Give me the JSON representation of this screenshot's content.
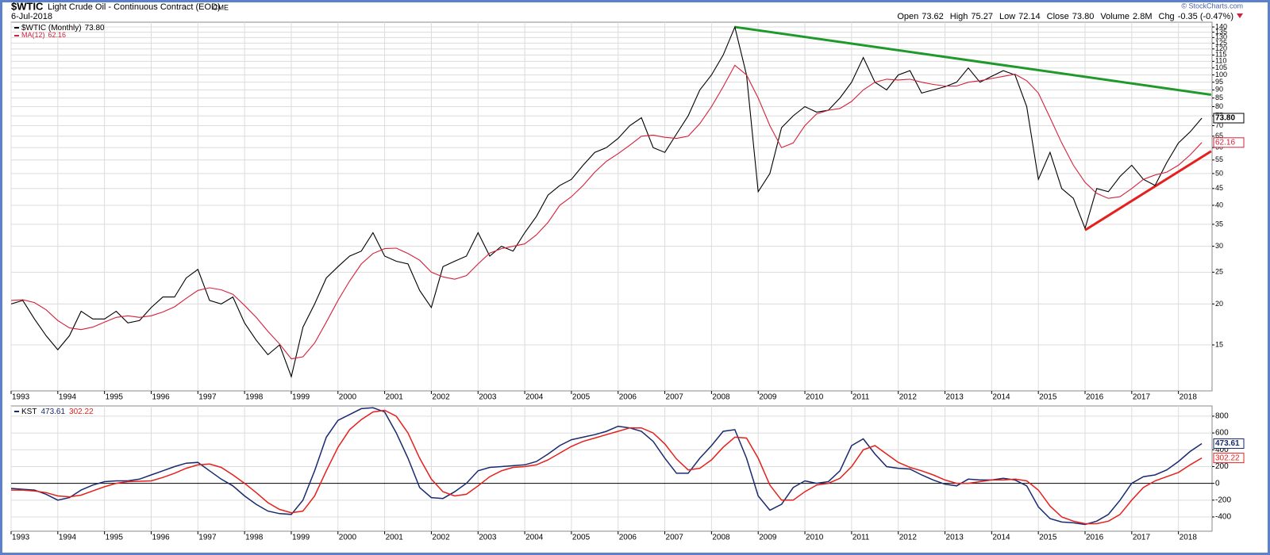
{
  "header": {
    "symbol": "$WTIC",
    "name": "Light Crude Oil - Continuous Contract (EOD)",
    "exchange": "CME",
    "date": "6-Jul-2018",
    "credit": "© StockCharts.com",
    "quote": [
      {
        "label": "Open",
        "value": "73.62"
      },
      {
        "label": "High",
        "value": "75.27"
      },
      {
        "label": "Low",
        "value": "72.14"
      },
      {
        "label": "Close",
        "value": "73.80"
      },
      {
        "label": "Volume",
        "value": "2.8M"
      },
      {
        "label": "Chg",
        "value": "-0.35 (-0.47%)"
      }
    ]
  },
  "chart_data": [
    {
      "type": "line",
      "log_scale": true,
      "grid": true,
      "x": [
        1993,
        1993.25,
        1993.5,
        1993.75,
        1994,
        1994.25,
        1994.5,
        1994.75,
        1995,
        1995.25,
        1995.5,
        1995.75,
        1996,
        1996.25,
        1996.5,
        1996.75,
        1997,
        1997.25,
        1997.5,
        1997.75,
        1998,
        1998.25,
        1998.5,
        1998.75,
        1999,
        1999.25,
        1999.5,
        1999.75,
        2000,
        2000.25,
        2000.5,
        2000.75,
        2001,
        2001.25,
        2001.5,
        2001.75,
        2002,
        2002.25,
        2002.5,
        2002.75,
        2003,
        2003.25,
        2003.5,
        2003.75,
        2004,
        2004.25,
        2004.5,
        2004.75,
        2005,
        2005.25,
        2005.5,
        2005.75,
        2006,
        2006.25,
        2006.5,
        2006.75,
        2007,
        2007.25,
        2007.5,
        2007.75,
        2008,
        2008.25,
        2008.5,
        2008.75,
        2009,
        2009.25,
        2009.5,
        2009.75,
        2010,
        2010.25,
        2010.5,
        2010.75,
        2011,
        2011.25,
        2011.5,
        2011.75,
        2012,
        2012.25,
        2012.5,
        2012.75,
        2013,
        2013.25,
        2013.5,
        2013.75,
        2014,
        2014.25,
        2014.5,
        2014.75,
        2015,
        2015.25,
        2015.5,
        2015.75,
        2016,
        2016.25,
        2016.5,
        2016.75,
        2017,
        2017.25,
        2017.5,
        2017.75,
        2018,
        2018.25,
        2018.5
      ],
      "series": [
        {
          "name": "$WTIC (Monthly)",
          "color": "#000000",
          "last_label": "73.80",
          "values": [
            20,
            20.5,
            18,
            16,
            14.5,
            16,
            19,
            18,
            18,
            19,
            17.5,
            17.8,
            19.5,
            21,
            21,
            24,
            25.5,
            20.5,
            20,
            21,
            17.5,
            15.5,
            14,
            15,
            12,
            17,
            20,
            24,
            26,
            28,
            29,
            33,
            28,
            27,
            26.5,
            22,
            19.5,
            26,
            27,
            28,
            33,
            28,
            30,
            29,
            33,
            37,
            43,
            46,
            48,
            53,
            58,
            60,
            64,
            70,
            74,
            60,
            58,
            66,
            75,
            90,
            100,
            115,
            140,
            100,
            44,
            50,
            69,
            75,
            80,
            77,
            78,
            85,
            95,
            113,
            95,
            90,
            100,
            103,
            88,
            90,
            92,
            95,
            105,
            95,
            99,
            103,
            100,
            80,
            48,
            58,
            45,
            42,
            34,
            45,
            44,
            49,
            53,
            48,
            46,
            54,
            62,
            67,
            73.8
          ]
        },
        {
          "name": "MA(12)",
          "color": "#d4203a",
          "last_label": "62.16",
          "values": [
            20.5,
            20.6,
            20.2,
            19.2,
            17.8,
            16.9,
            16.7,
            17.0,
            17.6,
            18.2,
            18.4,
            18.2,
            18.4,
            18.9,
            19.6,
            20.8,
            22.0,
            22.4,
            22.1,
            21.4,
            19.8,
            18.2,
            16.5,
            15.1,
            13.6,
            13.8,
            15.2,
            17.6,
            20.5,
            23.5,
            26.5,
            28.5,
            29.5,
            29.6,
            28.5,
            27.2,
            25.0,
            24.2,
            23.8,
            24.4,
            26.5,
            28.6,
            29.5,
            30.0,
            30.5,
            32.5,
            35.5,
            40.0,
            42.5,
            46.0,
            50.5,
            54.5,
            57.5,
            61.0,
            65.0,
            65.5,
            64.5,
            64.0,
            65.0,
            71.0,
            80.0,
            92.0,
            107.0,
            100.0,
            85.0,
            70.0,
            60.0,
            62.0,
            70.0,
            76.0,
            78.0,
            79.0,
            83.0,
            90.0,
            95.0,
            97.0,
            96.5,
            97.0,
            95.0,
            93.5,
            92.5,
            92.5,
            95.0,
            96.0,
            97.5,
            99.0,
            100.5,
            96.0,
            88.0,
            74.0,
            62.0,
            53.0,
            47.0,
            43.5,
            42.0,
            42.5,
            45.0,
            48.0,
            49.5,
            50.5,
            53.0,
            57.0,
            62.16
          ]
        }
      ],
      "trendlines": [
        {
          "color": "#1f9a2a",
          "x": [
            2008.5,
            2018.7
          ],
          "y": [
            140,
            87
          ]
        },
        {
          "color": "#e5201c",
          "x": [
            2016.0,
            2018.7
          ],
          "y": [
            33.6,
            58.5
          ]
        }
      ],
      "xlim": [
        1993,
        2018.72
      ],
      "xticks": [
        1993,
        1994,
        1995,
        1996,
        1997,
        1998,
        1999,
        2000,
        2001,
        2002,
        2003,
        2004,
        2005,
        2006,
        2007,
        2008,
        2009,
        2010,
        2011,
        2012,
        2013,
        2014,
        2015,
        2016,
        2017,
        2018
      ],
      "ylim": [
        10.86,
        144.8
      ],
      "yticks": [
        15,
        20,
        25,
        30,
        35,
        40,
        45,
        50,
        55,
        60,
        65,
        70,
        75,
        80,
        85,
        90,
        95,
        100,
        105,
        110,
        115,
        120,
        125,
        130,
        135,
        140
      ]
    },
    {
      "type": "line",
      "log_scale": false,
      "grid": true,
      "x": [
        1993,
        1993.25,
        1993.5,
        1993.75,
        1994,
        1994.25,
        1994.5,
        1994.75,
        1995,
        1995.25,
        1995.5,
        1995.75,
        1996,
        1996.25,
        1996.5,
        1996.75,
        1997,
        1997.25,
        1997.5,
        1997.75,
        1998,
        1998.25,
        1998.5,
        1998.75,
        1999,
        1999.25,
        1999.5,
        1999.75,
        2000,
        2000.25,
        2000.5,
        2000.75,
        2001,
        2001.25,
        2001.5,
        2001.75,
        2002,
        2002.25,
        2002.5,
        2002.75,
        2003,
        2003.25,
        2003.5,
        2003.75,
        2004,
        2004.25,
        2004.5,
        2004.75,
        2005,
        2005.25,
        2005.5,
        2005.75,
        2006,
        2006.25,
        2006.5,
        2006.75,
        2007,
        2007.25,
        2007.5,
        2007.75,
        2008,
        2008.25,
        2008.5,
        2008.75,
        2009,
        2009.25,
        2009.5,
        2009.75,
        2010,
        2010.25,
        2010.5,
        2010.75,
        2011,
        2011.25,
        2011.5,
        2011.75,
        2012,
        2012.25,
        2012.5,
        2012.75,
        2013,
        2013.25,
        2013.5,
        2013.75,
        2014,
        2014.25,
        2014.5,
        2014.75,
        2015,
        2015.25,
        2015.5,
        2015.75,
        2016,
        2016.25,
        2016.5,
        2016.75,
        2017,
        2017.25,
        2017.5,
        2017.75,
        2018,
        2018.25,
        2018.5
      ],
      "series": [
        {
          "name": "KST",
          "color": "#1a2a6e",
          "last_label": "473.61",
          "values": [
            -60,
            -70,
            -80,
            -130,
            -200,
            -170,
            -80,
            -20,
            20,
            30,
            30,
            50,
            100,
            150,
            200,
            240,
            250,
            150,
            50,
            -30,
            -150,
            -250,
            -330,
            -360,
            -370,
            -200,
            150,
            550,
            750,
            820,
            890,
            900,
            850,
            600,
            300,
            -50,
            -170,
            -180,
            -100,
            0,
            150,
            190,
            200,
            210,
            220,
            260,
            350,
            450,
            520,
            550,
            580,
            620,
            680,
            660,
            620,
            500,
            300,
            120,
            120,
            300,
            450,
            620,
            640,
            300,
            -150,
            -320,
            -250,
            -50,
            30,
            0,
            20,
            150,
            450,
            530,
            350,
            200,
            180,
            170,
            100,
            40,
            -10,
            -30,
            50,
            40,
            40,
            60,
            40,
            -30,
            -280,
            -420,
            -460,
            -470,
            -490,
            -450,
            -370,
            -200,
            0,
            80,
            100,
            160,
            260,
            380,
            473.61
          ]
        },
        {
          "color": "#e5201c",
          "last_label": "302.22",
          "values": [
            -80,
            -80,
            -90,
            -110,
            -150,
            -160,
            -140,
            -90,
            -40,
            0,
            20,
            25,
            30,
            70,
            120,
            180,
            220,
            230,
            190,
            100,
            0,
            -110,
            -230,
            -310,
            -350,
            -330,
            -150,
            150,
            430,
            640,
            760,
            850,
            870,
            800,
            600,
            300,
            50,
            -100,
            -150,
            -130,
            -30,
            80,
            150,
            190,
            200,
            220,
            280,
            360,
            440,
            500,
            540,
            580,
            620,
            660,
            660,
            600,
            470,
            290,
            160,
            180,
            280,
            430,
            550,
            540,
            300,
            -20,
            -200,
            -200,
            -100,
            -20,
            0,
            60,
            200,
            400,
            450,
            350,
            250,
            190,
            150,
            100,
            40,
            0,
            0,
            20,
            40,
            40,
            50,
            30,
            -80,
            -270,
            -400,
            -450,
            -480,
            -480,
            -450,
            -370,
            -200,
            -50,
            30,
            80,
            130,
            220,
            302.22
          ]
        }
      ],
      "xlim": [
        1993,
        2018.72
      ],
      "xticks": [
        1993,
        1994,
        1995,
        1996,
        1997,
        1998,
        1999,
        2000,
        2001,
        2002,
        2003,
        2004,
        2005,
        2006,
        2007,
        2008,
        2009,
        2010,
        2011,
        2012,
        2013,
        2014,
        2015,
        2016,
        2017,
        2018
      ],
      "ylim": [
        -570,
        922
      ],
      "yticks": [
        -400,
        -200,
        0,
        200,
        400,
        600,
        800
      ]
    }
  ]
}
